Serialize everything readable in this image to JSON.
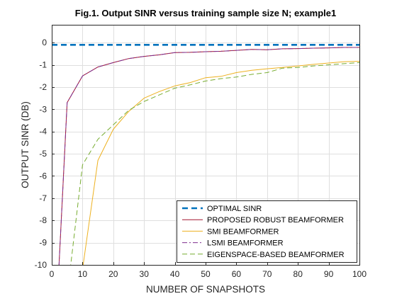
{
  "chart_data": {
    "type": "line",
    "title": "Fig.1. Output SINR versus training sample size N; example1",
    "xlabel": "NUMBER OF SNAPSHOTS",
    "ylabel": "OUTPUT SINR (DB)",
    "xlim": [
      0,
      100
    ],
    "ylim": [
      -10,
      0.8
    ],
    "xticks": [
      0,
      10,
      20,
      30,
      40,
      50,
      60,
      70,
      80,
      90,
      100
    ],
    "yticks": [
      -10,
      -9,
      -8,
      -7,
      -6,
      -5,
      -4,
      -3,
      -2,
      -1,
      0
    ],
    "grid": true,
    "legend_position": "bottom-right",
    "series": [
      {
        "name": "OPTIMAL SINR",
        "color": "#0072BD",
        "line_style": "dashed-thick",
        "x": [
          0,
          100
        ],
        "y": [
          -0.1,
          -0.1
        ]
      },
      {
        "name": "PROPOSED ROBUST BEAMFORMER",
        "color": "#A2142F",
        "line_style": "solid",
        "x": [
          2,
          5,
          10,
          15,
          20,
          25,
          30,
          35,
          40,
          45,
          50,
          55,
          60,
          65,
          70,
          75,
          80,
          85,
          90,
          95,
          100
        ],
        "y": [
          -11,
          -2.7,
          -1.5,
          -1.1,
          -0.9,
          -0.72,
          -0.62,
          -0.55,
          -0.45,
          -0.44,
          -0.41,
          -0.39,
          -0.35,
          -0.31,
          -0.32,
          -0.28,
          -0.27,
          -0.25,
          -0.24,
          -0.22,
          -0.22
        ]
      },
      {
        "name": "SMI BEAMFORMER",
        "color": "#EDB120",
        "line_style": "solid",
        "x": [
          10,
          15,
          20,
          25,
          30,
          35,
          40,
          45,
          50,
          55,
          60,
          65,
          70,
          75,
          80,
          85,
          90,
          95,
          100
        ],
        "y": [
          -10.2,
          -5.3,
          -3.9,
          -3.1,
          -2.5,
          -2.2,
          -1.95,
          -1.8,
          -1.58,
          -1.52,
          -1.35,
          -1.25,
          -1.18,
          -1.12,
          -1.05,
          -0.98,
          -0.92,
          -0.86,
          -0.84
        ]
      },
      {
        "name": "LSMI BEAMFORMER",
        "color": "#7E2F8E",
        "line_style": "dash-dot",
        "x": [
          2,
          5,
          10,
          15,
          20,
          25,
          30,
          35,
          40,
          45,
          50,
          55,
          60,
          65,
          70,
          75,
          80,
          85,
          90,
          95,
          100
        ],
        "y": [
          -11,
          -2.7,
          -1.5,
          -1.1,
          -0.9,
          -0.72,
          -0.62,
          -0.55,
          -0.45,
          -0.44,
          -0.41,
          -0.39,
          -0.35,
          -0.31,
          -0.32,
          -0.28,
          -0.27,
          -0.25,
          -0.24,
          -0.22,
          -0.22
        ]
      },
      {
        "name": "EIGENSPACE-BASED BEAMFORMER",
        "color": "#77AC30",
        "line_style": "dashed",
        "x": [
          6,
          10,
          15,
          20,
          25,
          30,
          35,
          40,
          45,
          50,
          55,
          60,
          65,
          70,
          75,
          80,
          85,
          90,
          95,
          100
        ],
        "y": [
          -10.2,
          -5.5,
          -4.35,
          -3.7,
          -3.05,
          -2.65,
          -2.35,
          -2.05,
          -1.9,
          -1.73,
          -1.62,
          -1.55,
          -1.43,
          -1.35,
          -1.15,
          -1.12,
          -1.05,
          -1.0,
          -0.95,
          -0.9
        ]
      }
    ]
  }
}
